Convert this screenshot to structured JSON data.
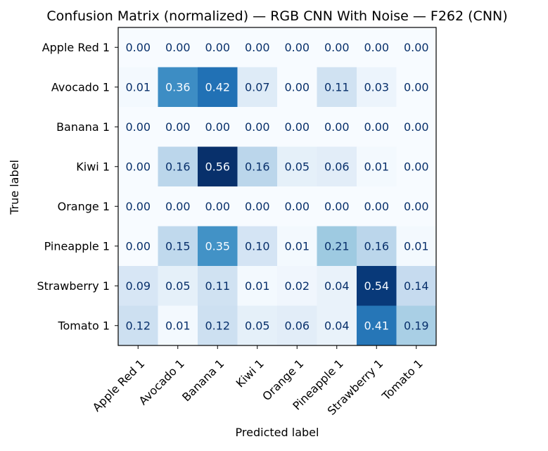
{
  "chart_data": {
    "type": "heatmap",
    "title": "Confusion Matrix (normalized) — RGB CNN With Noise — F262 (CNN)",
    "xlabel": "Predicted label",
    "ylabel": "True label",
    "x_categories": [
      "Apple Red 1",
      "Avocado 1",
      "Banana 1",
      "Kiwi 1",
      "Orange 1",
      "Pineapple 1",
      "Strawberry 1",
      "Tomato 1"
    ],
    "y_categories": [
      "Apple Red 1",
      "Avocado 1",
      "Banana 1",
      "Kiwi 1",
      "Orange 1",
      "Pineapple 1",
      "Strawberry 1",
      "Tomato 1"
    ],
    "values": [
      [
        0.0,
        0.0,
        0.0,
        0.0,
        0.0,
        0.0,
        0.0,
        0.0
      ],
      [
        0.01,
        0.36,
        0.42,
        0.07,
        0.0,
        0.11,
        0.03,
        0.0
      ],
      [
        0.0,
        0.0,
        0.0,
        0.0,
        0.0,
        0.0,
        0.0,
        0.0
      ],
      [
        0.0,
        0.16,
        0.56,
        0.16,
        0.05,
        0.06,
        0.01,
        0.0
      ],
      [
        0.0,
        0.0,
        0.0,
        0.0,
        0.0,
        0.0,
        0.0,
        0.0
      ],
      [
        0.0,
        0.15,
        0.35,
        0.1,
        0.01,
        0.21,
        0.16,
        0.01
      ],
      [
        0.09,
        0.05,
        0.11,
        0.01,
        0.02,
        0.04,
        0.54,
        0.14
      ],
      [
        0.12,
        0.01,
        0.12,
        0.05,
        0.06,
        0.04,
        0.41,
        0.19
      ]
    ],
    "value_range": [
      0,
      0.56
    ],
    "colormap": "Blues",
    "colorbar": false,
    "grid": false
  }
}
